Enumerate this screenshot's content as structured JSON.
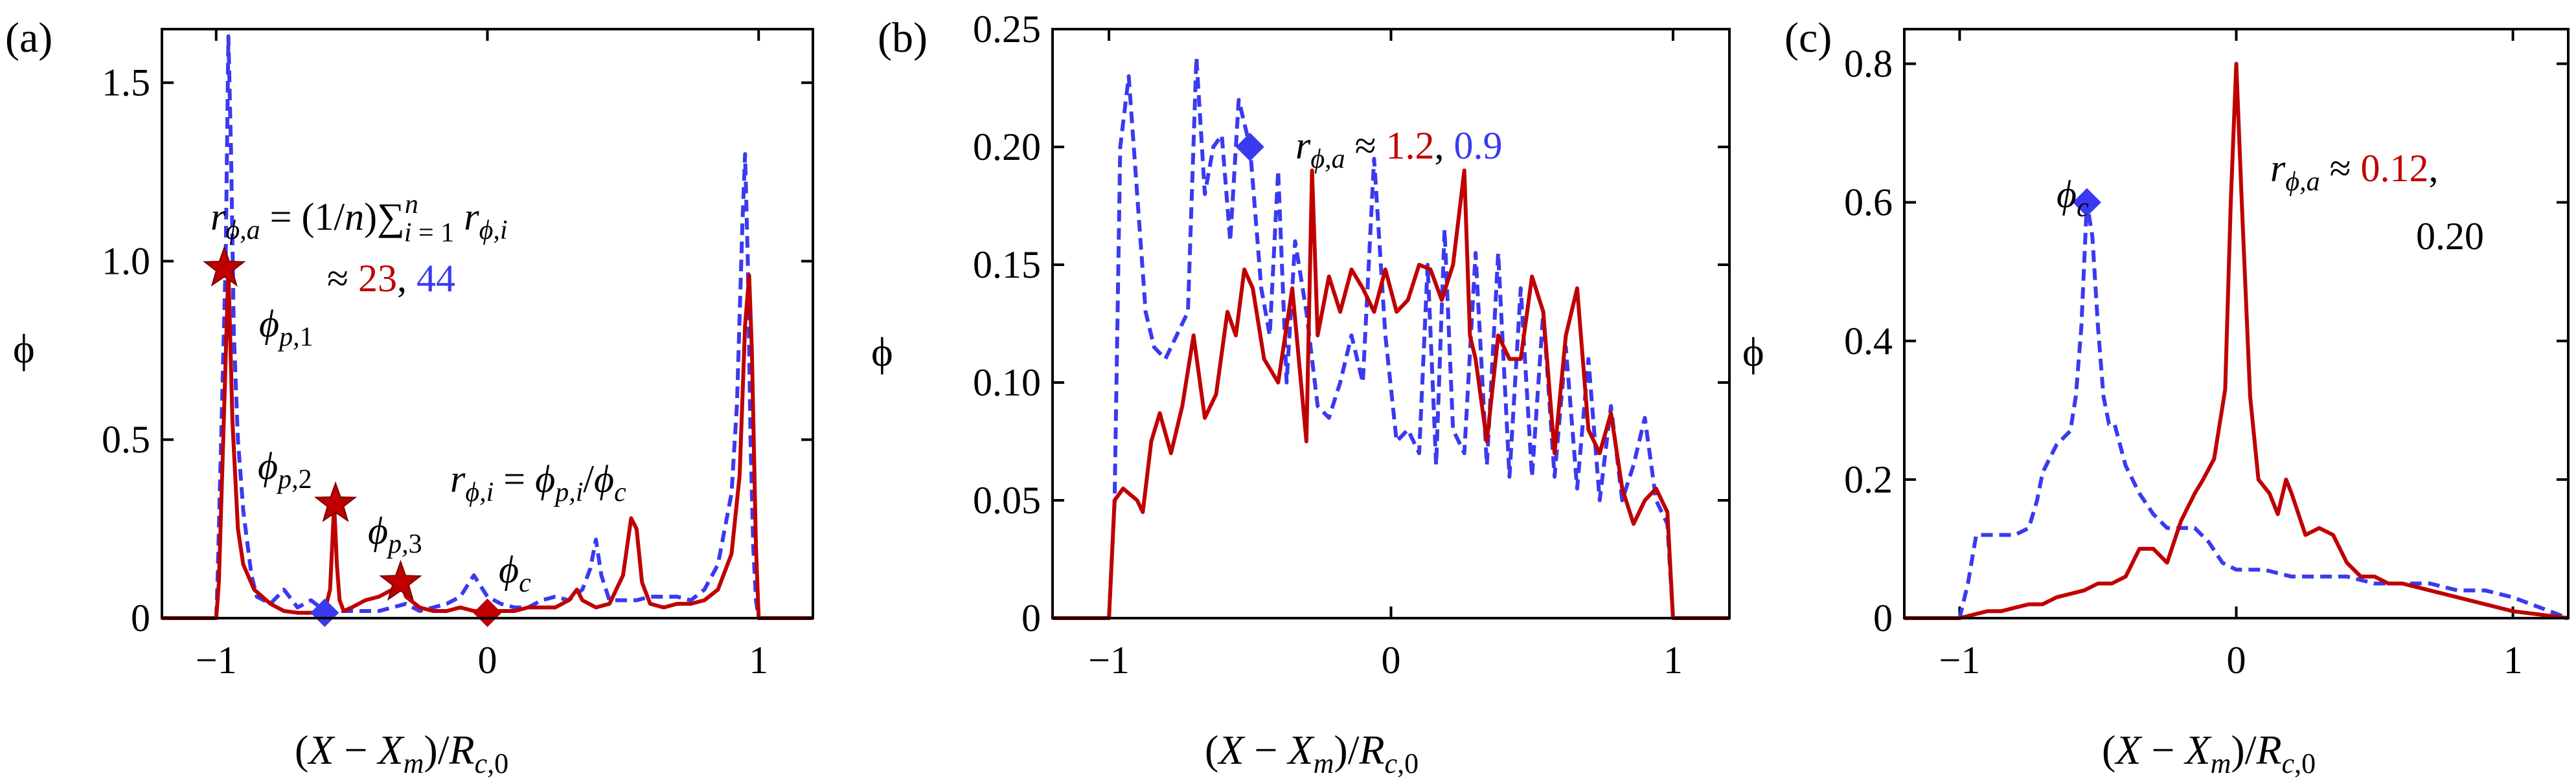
{
  "colors": {
    "red": "#c00000",
    "blue": "#3a3af0",
    "axis": "#000000"
  },
  "chart_data": [
    {
      "type": "line",
      "panel_label": "(a)",
      "xlabel": "(X − X_m)/R_c,0",
      "ylabel": "ϕ",
      "xlim": [
        -1.2,
        1.2
      ],
      "ylim": [
        0,
        1.65
      ],
      "xticks": [
        -1,
        0,
        1
      ],
      "yticks": [
        0,
        0.5,
        1.0,
        1.5
      ],
      "xtick_labels": [
        "−1",
        "0",
        "1"
      ],
      "ytick_labels": [
        "0",
        "0.5",
        "1.0",
        "1.5"
      ],
      "series": [
        {
          "style": "solid",
          "color": "red",
          "x": [
            -1.2,
            -1.0,
            -0.99,
            -0.97,
            -0.955,
            -0.94,
            -0.92,
            -0.9,
            -0.86,
            -0.8,
            -0.75,
            -0.7,
            -0.65,
            -0.6,
            -0.58,
            -0.565,
            -0.555,
            -0.545,
            -0.53,
            -0.5,
            -0.45,
            -0.4,
            -0.35,
            -0.32,
            -0.3,
            -0.25,
            -0.2,
            -0.15,
            -0.1,
            -0.05,
            0,
            0.05,
            0.1,
            0.15,
            0.2,
            0.25,
            0.3,
            0.33,
            0.35,
            0.4,
            0.45,
            0.5,
            0.53,
            0.55,
            0.57,
            0.6,
            0.65,
            0.7,
            0.75,
            0.8,
            0.85,
            0.9,
            0.93,
            0.95,
            0.965,
            0.975,
            0.99,
            1.0,
            1.2
          ],
          "y": [
            0,
            0,
            0.1,
            0.6,
            0.98,
            0.55,
            0.25,
            0.15,
            0.08,
            0.04,
            0.02,
            0.015,
            0.015,
            0.02,
            0.08,
            0.32,
            0.15,
            0.05,
            0.02,
            0.03,
            0.05,
            0.06,
            0.08,
            0.1,
            0.06,
            0.03,
            0.02,
            0.02,
            0.03,
            0.02,
            0.02,
            0.02,
            0.02,
            0.03,
            0.03,
            0.03,
            0.05,
            0.08,
            0.05,
            0.03,
            0.04,
            0.12,
            0.28,
            0.25,
            0.1,
            0.04,
            0.03,
            0.04,
            0.04,
            0.05,
            0.08,
            0.18,
            0.4,
            0.82,
            0.96,
            0.75,
            0.2,
            0,
            0
          ]
        },
        {
          "style": "dashed",
          "color": "blue",
          "x": [
            -1.2,
            -1.0,
            -0.995,
            -0.98,
            -0.965,
            -0.955,
            -0.945,
            -0.935,
            -0.92,
            -0.9,
            -0.87,
            -0.85,
            -0.8,
            -0.75,
            -0.7,
            -0.65,
            -0.6,
            -0.55,
            -0.5,
            -0.45,
            -0.4,
            -0.35,
            -0.3,
            -0.25,
            -0.2,
            -0.15,
            -0.1,
            -0.05,
            0,
            0.05,
            0.1,
            0.15,
            0.2,
            0.25,
            0.3,
            0.35,
            0.38,
            0.4,
            0.42,
            0.45,
            0.5,
            0.55,
            0.6,
            0.7,
            0.75,
            0.8,
            0.85,
            0.9,
            0.92,
            0.94,
            0.95,
            0.96,
            0.97,
            0.98,
            0.99,
            1.0,
            1.2
          ],
          "y": [
            0,
            0,
            0.1,
            0.55,
            1.0,
            1.63,
            1.3,
            0.8,
            0.5,
            0.3,
            0.12,
            0.06,
            0.04,
            0.08,
            0.03,
            0.05,
            0.02,
            0.02,
            0.02,
            0.02,
            0.02,
            0.03,
            0.04,
            0.02,
            0.03,
            0.04,
            0.06,
            0.12,
            0.06,
            0.04,
            0.03,
            0.03,
            0.05,
            0.06,
            0.05,
            0.08,
            0.14,
            0.22,
            0.12,
            0.05,
            0.05,
            0.05,
            0.06,
            0.06,
            0.05,
            0.08,
            0.15,
            0.35,
            0.6,
            1.1,
            1.3,
            1.0,
            0.5,
            0.2,
            0.05,
            0,
            0
          ]
        }
      ],
      "markers": [
        {
          "shape": "star",
          "color": "red",
          "x": -0.97,
          "y": 0.98,
          "label": "ϕ_p,1"
        },
        {
          "shape": "star",
          "color": "red",
          "x": -0.56,
          "y": 0.32,
          "label": "ϕ_p,2"
        },
        {
          "shape": "star",
          "color": "red",
          "x": -0.32,
          "y": 0.1,
          "label": "ϕ_p,3"
        },
        {
          "shape": "diamond",
          "color": "blue",
          "x": -0.6,
          "y": 0.015,
          "label": ""
        },
        {
          "shape": "diamond",
          "color": "red",
          "x": 0,
          "y": 0.015,
          "label": "ϕ_c"
        }
      ],
      "annotations": {
        "mean_eq": "r_ϕ,a = (1/n)∑ⁿᵢ₌₁ r_ϕ,i",
        "approx_prefix": "≈ ",
        "red_value": "23",
        "separator": ", ",
        "blue_value": "44",
        "ratio_eq": "r_ϕ,i = ϕ_p,i/ϕ_c"
      }
    },
    {
      "type": "line",
      "panel_label": "(b)",
      "xlabel": "(X − X_m)/R_c,0",
      "ylabel": "ϕ",
      "xlim": [
        -1.2,
        1.2
      ],
      "ylim": [
        0,
        0.25
      ],
      "xticks": [
        -1,
        0,
        1
      ],
      "yticks": [
        0,
        0.05,
        0.1,
        0.15,
        0.2,
        0.25
      ],
      "xtick_labels": [
        "−1",
        "0",
        "1"
      ],
      "ytick_labels": [
        "0",
        "0.05",
        "0.10",
        "0.15",
        "0.20",
        "0.25"
      ],
      "series": [
        {
          "style": "solid",
          "color": "red",
          "x": [
            -1.2,
            -1.0,
            -0.98,
            -0.95,
            -0.9,
            -0.88,
            -0.85,
            -0.82,
            -0.78,
            -0.74,
            -0.7,
            -0.66,
            -0.62,
            -0.58,
            -0.55,
            -0.52,
            -0.49,
            -0.45,
            -0.4,
            -0.35,
            -0.3,
            -0.28,
            -0.26,
            -0.22,
            -0.18,
            -0.14,
            -0.1,
            -0.06,
            -0.02,
            0.02,
            0.06,
            0.1,
            0.14,
            0.18,
            0.22,
            0.26,
            0.28,
            0.3,
            0.34,
            0.38,
            0.42,
            0.46,
            0.5,
            0.54,
            0.58,
            0.62,
            0.66,
            0.7,
            0.74,
            0.78,
            0.82,
            0.86,
            0.9,
            0.94,
            0.98,
            1.0,
            1.2
          ],
          "y": [
            0,
            0,
            0.05,
            0.055,
            0.05,
            0.045,
            0.075,
            0.087,
            0.07,
            0.09,
            0.12,
            0.085,
            0.095,
            0.13,
            0.12,
            0.148,
            0.14,
            0.11,
            0.1,
            0.14,
            0.075,
            0.19,
            0.12,
            0.145,
            0.13,
            0.148,
            0.14,
            0.13,
            0.148,
            0.13,
            0.135,
            0.15,
            0.148,
            0.135,
            0.15,
            0.19,
            0.12,
            0.11,
            0.075,
            0.12,
            0.11,
            0.11,
            0.145,
            0.13,
            0.07,
            0.12,
            0.14,
            0.08,
            0.07,
            0.087,
            0.055,
            0.04,
            0.05,
            0.055,
            0.045,
            0,
            0
          ]
        },
        {
          "style": "dashed",
          "color": "blue",
          "x": [
            -1.2,
            -1.0,
            -0.98,
            -0.96,
            -0.93,
            -0.9,
            -0.87,
            -0.84,
            -0.8,
            -0.76,
            -0.72,
            -0.69,
            -0.66,
            -0.63,
            -0.6,
            -0.57,
            -0.54,
            -0.5,
            -0.46,
            -0.43,
            -0.4,
            -0.37,
            -0.34,
            -0.3,
            -0.26,
            -0.22,
            -0.18,
            -0.14,
            -0.1,
            -0.06,
            -0.02,
            0.02,
            0.06,
            0.1,
            0.13,
            0.16,
            0.19,
            0.22,
            0.26,
            0.3,
            0.34,
            0.38,
            0.42,
            0.46,
            0.5,
            0.54,
            0.58,
            0.62,
            0.66,
            0.7,
            0.74,
            0.78,
            0.82,
            0.86,
            0.9,
            0.94,
            0.98,
            1.0,
            1.2
          ],
          "y": [
            0,
            0,
            0.05,
            0.2,
            0.23,
            0.18,
            0.13,
            0.115,
            0.11,
            0.12,
            0.13,
            0.238,
            0.18,
            0.2,
            0.205,
            0.16,
            0.22,
            0.2,
            0.14,
            0.12,
            0.19,
            0.1,
            0.16,
            0.13,
            0.09,
            0.085,
            0.1,
            0.12,
            0.1,
            0.195,
            0.12,
            0.075,
            0.08,
            0.07,
            0.15,
            0.065,
            0.165,
            0.08,
            0.07,
            0.155,
            0.065,
            0.155,
            0.06,
            0.14,
            0.06,
            0.13,
            0.06,
            0.115,
            0.055,
            0.11,
            0.05,
            0.09,
            0.05,
            0.065,
            0.085,
            0.05,
            0.04,
            0,
            0
          ]
        }
      ],
      "markers": [
        {
          "shape": "diamond",
          "color": "blue",
          "x": -0.5,
          "y": 0.2,
          "label": ""
        }
      ],
      "annotations": {
        "prefix": "r_ϕ,a ≈ ",
        "red_value": "1.2",
        "separator": ", ",
        "blue_value": "0.9"
      }
    },
    {
      "type": "line",
      "panel_label": "(c)",
      "xlabel": "(X − X_m)/R_c,0",
      "ylabel": "ϕ",
      "xlim": [
        -1.2,
        1.2
      ],
      "ylim": [
        0,
        0.85
      ],
      "xticks": [
        -1,
        0,
        1
      ],
      "yticks": [
        0,
        0.2,
        0.4,
        0.6,
        0.8
      ],
      "xtick_labels": [
        "−1",
        "0",
        "1"
      ],
      "ytick_labels": [
        "0",
        "0.2",
        "0.4",
        "0.6",
        "0.8"
      ],
      "series": [
        {
          "style": "solid",
          "color": "red",
          "x": [
            -1.2,
            -1.0,
            -0.95,
            -0.9,
            -0.85,
            -0.8,
            -0.75,
            -0.7,
            -0.65,
            -0.6,
            -0.55,
            -0.5,
            -0.45,
            -0.4,
            -0.35,
            -0.3,
            -0.25,
            -0.2,
            -0.15,
            -0.12,
            -0.08,
            -0.04,
            -0.02,
            0,
            0.02,
            0.05,
            0.08,
            0.12,
            0.15,
            0.18,
            0.2,
            0.25,
            0.3,
            0.35,
            0.4,
            0.45,
            0.5,
            0.55,
            0.6,
            0.7,
            0.8,
            0.9,
            1.0,
            1.2
          ],
          "y": [
            0,
            0,
            0.005,
            0.01,
            0.01,
            0.015,
            0.02,
            0.02,
            0.03,
            0.035,
            0.04,
            0.05,
            0.05,
            0.06,
            0.1,
            0.1,
            0.08,
            0.14,
            0.18,
            0.2,
            0.23,
            0.33,
            0.6,
            0.8,
            0.6,
            0.32,
            0.2,
            0.18,
            0.15,
            0.2,
            0.18,
            0.12,
            0.13,
            0.12,
            0.08,
            0.06,
            0.06,
            0.05,
            0.05,
            0.04,
            0.03,
            0.02,
            0.01,
            0
          ]
        },
        {
          "style": "dashed",
          "color": "blue",
          "x": [
            -1.2,
            -1.0,
            -0.97,
            -0.94,
            -0.9,
            -0.85,
            -0.8,
            -0.75,
            -0.72,
            -0.7,
            -0.65,
            -0.6,
            -0.58,
            -0.56,
            -0.54,
            -0.52,
            -0.5,
            -0.48,
            -0.46,
            -0.44,
            -0.42,
            -0.4,
            -0.35,
            -0.3,
            -0.25,
            -0.2,
            -0.15,
            -0.1,
            -0.05,
            0,
            0.05,
            0.1,
            0.2,
            0.3,
            0.4,
            0.5,
            0.6,
            0.7,
            0.8,
            0.9,
            1.0,
            1.2
          ],
          "y": [
            0,
            0,
            0.05,
            0.12,
            0.12,
            0.12,
            0.12,
            0.13,
            0.17,
            0.21,
            0.25,
            0.27,
            0.32,
            0.42,
            0.6,
            0.55,
            0.42,
            0.32,
            0.28,
            0.28,
            0.25,
            0.22,
            0.18,
            0.15,
            0.13,
            0.13,
            0.13,
            0.11,
            0.08,
            0.07,
            0.07,
            0.07,
            0.06,
            0.06,
            0.06,
            0.05,
            0.05,
            0.05,
            0.04,
            0.04,
            0.03,
            0
          ]
        }
      ],
      "markers": [
        {
          "shape": "diamond",
          "color": "blue",
          "x": -0.54,
          "y": 0.6,
          "label": "ϕ_c"
        }
      ],
      "annotations": {
        "prefix": "r_ϕ,a ≈ ",
        "red_value": "0.12",
        "separator": ",",
        "blue_value": "0.20"
      }
    }
  ]
}
